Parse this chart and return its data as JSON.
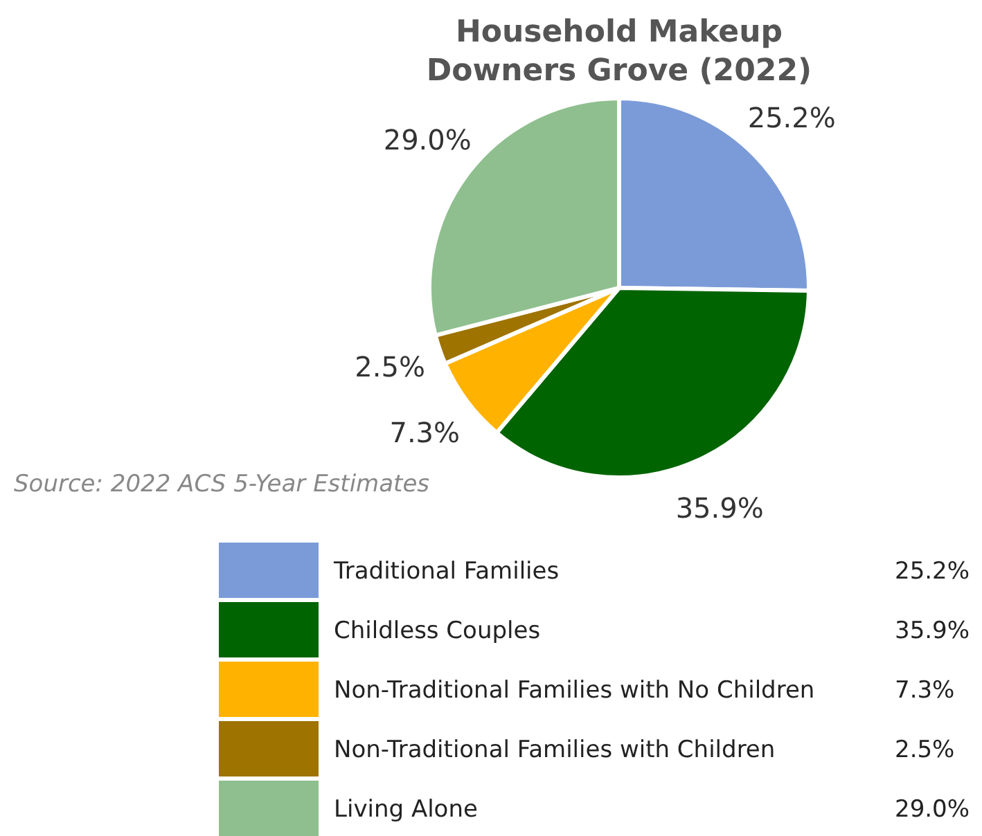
{
  "chart_data": {
    "type": "pie",
    "title": "Household Makeup",
    "subtitle": "Downers Grove (2022)",
    "categories": [
      "Traditional Families",
      "Childless Couples",
      "Non-Traditional Families with No Children",
      "Non-Traditional Families with Children",
      "Living Alone"
    ],
    "values": [
      25.2,
      35.9,
      7.3,
      2.5,
      29.0
    ],
    "colors": [
      "#7b9bd8",
      "#006400",
      "#ffb300",
      "#9e7300",
      "#8fbf8f"
    ],
    "value_labels": [
      "25.2%",
      "35.9%",
      "7.3%",
      "2.5%",
      "29.0%"
    ],
    "legend": "bottom",
    "annotations": [
      "Source: 2022 ACS 5-Year Estimates"
    ]
  }
}
